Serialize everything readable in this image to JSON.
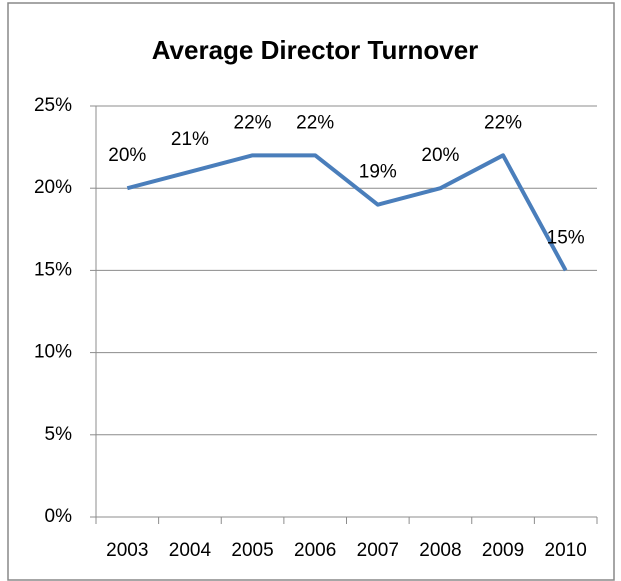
{
  "chart_data": {
    "type": "line",
    "title": "Average Director Turnover",
    "categories": [
      "2003",
      "2004",
      "2005",
      "2006",
      "2007",
      "2008",
      "2009",
      "2010"
    ],
    "values": [
      20,
      21,
      22,
      22,
      19,
      20,
      22,
      15
    ],
    "value_labels": [
      "20%",
      "21%",
      "22%",
      "22%",
      "19%",
      "20%",
      "22%",
      "15%"
    ],
    "color": "#4a7ebb",
    "ylim": [
      0,
      25
    ],
    "yticks": [
      {
        "value": 0,
        "label": "0%"
      },
      {
        "value": 5,
        "label": "5%"
      },
      {
        "value": 10,
        "label": "10%"
      },
      {
        "value": 15,
        "label": "15%"
      },
      {
        "value": 20,
        "label": "20%"
      },
      {
        "value": 25,
        "label": "25%"
      }
    ],
    "grid": true
  }
}
